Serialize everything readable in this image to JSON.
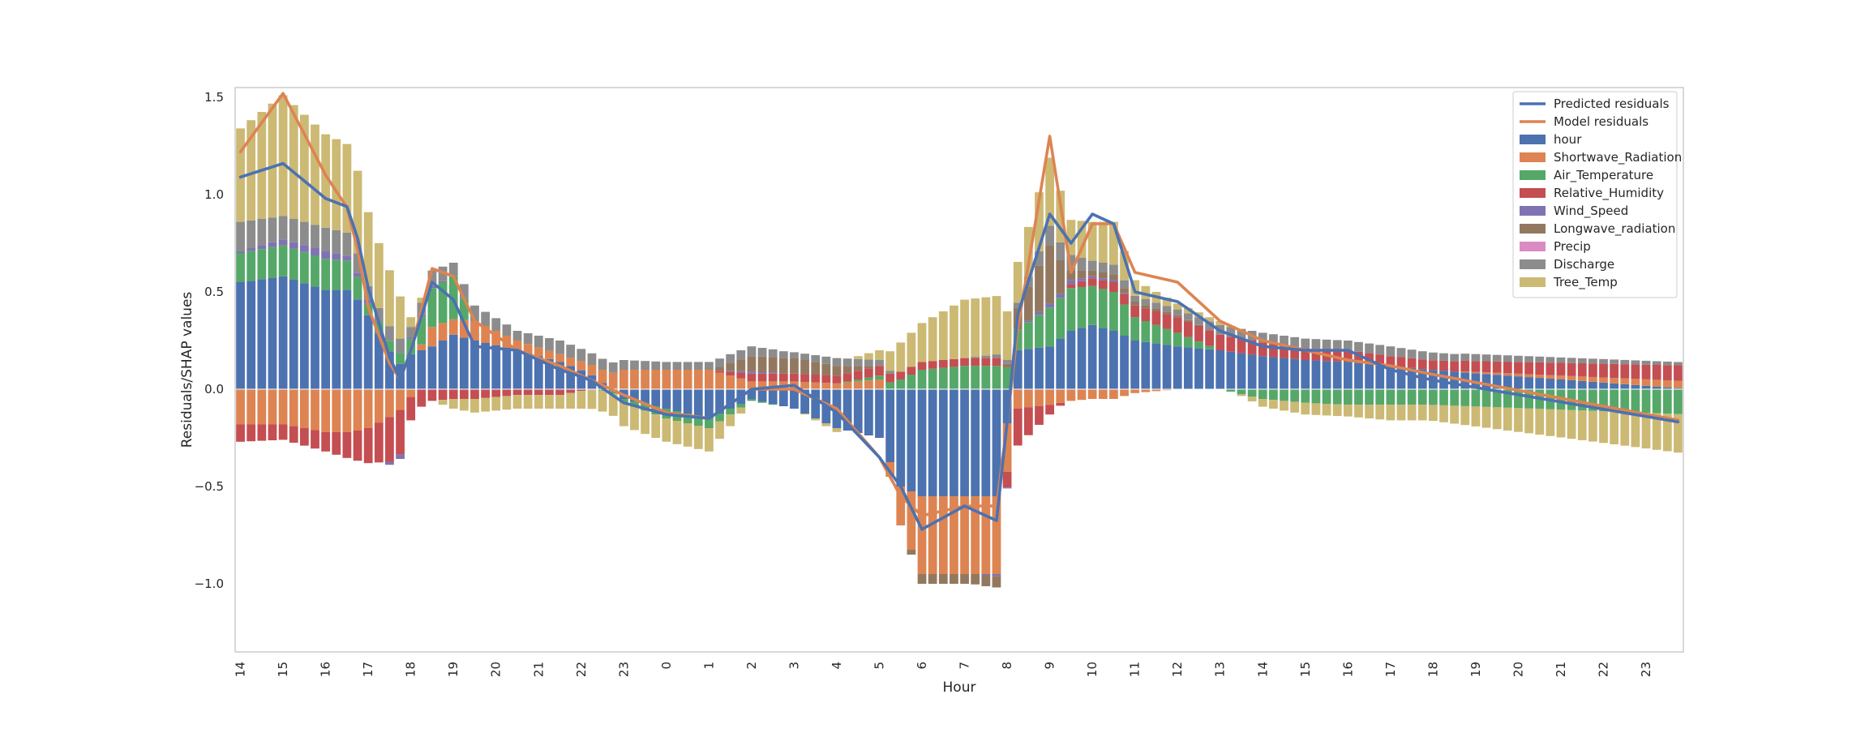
{
  "chart_data": {
    "type": "bar",
    "stacked": true,
    "title": "",
    "xlabel": "Hour",
    "ylabel": "Residuals/SHAP values",
    "ylim": [
      -1.35,
      1.55
    ],
    "yticks": [
      -1.0,
      -0.5,
      0.0,
      0.5,
      1.0,
      1.5
    ],
    "ytick_labels": [
      "−1.0",
      "−0.5",
      "0.0",
      "0.5",
      "1.0",
      "1.5"
    ],
    "x_tick_labels": [
      "14",
      "15",
      "16",
      "17",
      "18",
      "19",
      "20",
      "21",
      "22",
      "23",
      "0",
      "1",
      "2",
      "3",
      "4",
      "5",
      "6",
      "7",
      "8",
      "9",
      "10",
      "11",
      "12",
      "13",
      "14",
      "15",
      "16",
      "17",
      "18",
      "19",
      "20",
      "21",
      "22",
      "23"
    ],
    "points_per_hour": 4,
    "grid": false,
    "legend_position": "top-right",
    "legend": [
      {
        "label": "Predicted residuals",
        "kind": "line",
        "color": "#4c72b0"
      },
      {
        "label": "Model residuals",
        "kind": "line",
        "color": "#dd8452"
      },
      {
        "label": "hour",
        "kind": "bar",
        "color": "#4c72b0"
      },
      {
        "label": "Shortwave_Radiation",
        "kind": "bar",
        "color": "#dd8452"
      },
      {
        "label": "Air_Temperature",
        "kind": "bar",
        "color": "#55a868"
      },
      {
        "label": "Relative_Humidity",
        "kind": "bar",
        "color": "#c44e52"
      },
      {
        "label": "Wind_Speed",
        "kind": "bar",
        "color": "#8172b3"
      },
      {
        "label": "Longwave_radiation",
        "kind": "bar",
        "color": "#937860"
      },
      {
        "label": "Precip",
        "kind": "bar",
        "color": "#da8bc3"
      },
      {
        "label": "Discharge",
        "kind": "bar",
        "color": "#8c8c8c"
      },
      {
        "label": "Tree_Temp",
        "kind": "bar",
        "color": "#ccb974"
      }
    ],
    "features": [
      "hour",
      "Shortwave_Radiation",
      "Air_Temperature",
      "Relative_Humidity",
      "Wind_Speed",
      "Longwave_radiation",
      "Precip",
      "Discharge",
      "Tree_Temp"
    ],
    "keyframes": [
      {
        "t": 0,
        "f": [
          0.55,
          -0.18,
          0.15,
          -0.09,
          0.01,
          0.0,
          0.0,
          0.15,
          0.48
        ],
        "pred": 1.09,
        "model": 1.22
      },
      {
        "t": 1.0,
        "f": [
          0.58,
          -0.18,
          0.16,
          -0.08,
          0.03,
          0.0,
          0.0,
          0.12,
          0.62
        ],
        "pred": 1.16,
        "model": 1.52
      },
      {
        "t": 2.0,
        "f": [
          0.51,
          -0.22,
          0.16,
          -0.1,
          0.04,
          0.0,
          0.0,
          0.12,
          0.48
        ],
        "pred": 0.98,
        "model": 1.1
      },
      {
        "t": 2.6,
        "f": [
          0.51,
          -0.22,
          0.15,
          -0.14,
          0.02,
          0.0,
          0.0,
          0.12,
          0.45
        ],
        "pred": 0.93,
        "model": 0.9
      },
      {
        "t": 3.0,
        "f": [
          0.38,
          -0.2,
          0.06,
          -0.18,
          0.02,
          0.0,
          0.0,
          0.07,
          0.38
        ],
        "pred": 0.52,
        "model": 0.42
      },
      {
        "t": 3.7,
        "f": [
          0.12,
          -0.12,
          0.05,
          -0.25,
          -0.03,
          0.0,
          0.0,
          0.08,
          0.25
        ],
        "pred": 0.02,
        "model": 0.02
      },
      {
        "t": 4.0,
        "f": [
          0.18,
          -0.04,
          0.08,
          -0.12,
          0.01,
          0.0,
          0.0,
          0.05,
          0.05
        ],
        "pred": 0.2,
        "model": 0.2
      },
      {
        "t": 4.5,
        "f": [
          0.22,
          0.1,
          0.2,
          -0.06,
          0.01,
          0.0,
          0.0,
          0.08,
          0.0
        ],
        "pred": 0.55,
        "model": 0.62
      },
      {
        "t": 5.0,
        "f": [
          0.28,
          0.08,
          0.22,
          -0.05,
          0.0,
          0.0,
          0.0,
          0.07,
          -0.05
        ],
        "pred": 0.46,
        "model": 0.58
      },
      {
        "t": 5.5,
        "f": [
          0.25,
          0.1,
          0.0,
          -0.05,
          0.0,
          0.0,
          0.0,
          0.08,
          -0.07
        ],
        "pred": 0.22,
        "model": 0.35
      },
      {
        "t": 6.5,
        "f": [
          0.2,
          0.05,
          0.0,
          -0.03,
          0.0,
          0.0,
          0.0,
          0.05,
          -0.07
        ],
        "pred": 0.2,
        "model": 0.2
      },
      {
        "t": 7.5,
        "f": [
          0.14,
          0.04,
          0.0,
          -0.03,
          0.0,
          0.0,
          0.0,
          0.07,
          -0.07
        ],
        "pred": 0.1,
        "model": 0.12
      },
      {
        "t": 8.2,
        "f": [
          0.08,
          0.05,
          0.0,
          0.0,
          0.0,
          0.0,
          0.0,
          0.06,
          -0.1
        ],
        "pred": 0.05,
        "model": 0.05
      },
      {
        "t": 9.0,
        "f": [
          -0.05,
          0.1,
          -0.02,
          0.0,
          0.0,
          0.0,
          0.0,
          0.05,
          -0.12
        ],
        "pred": -0.07,
        "model": -0.03
      },
      {
        "t": 10.0,
        "f": [
          -0.1,
          0.1,
          -0.05,
          0.0,
          0.0,
          0.0,
          0.0,
          0.04,
          -0.12
        ],
        "pred": -0.13,
        "model": -0.12
      },
      {
        "t": 11.0,
        "f": [
          -0.15,
          0.1,
          -0.05,
          0.0,
          0.0,
          0.0,
          0.0,
          0.04,
          -0.12
        ],
        "pred": -0.15,
        "model": -0.15
      },
      {
        "t": 12.0,
        "f": [
          -0.05,
          0.04,
          -0.01,
          0.04,
          0.01,
          0.08,
          0.0,
          0.05,
          0.0
        ],
        "pred": 0.0,
        "model": 0.0
      },
      {
        "t": 13.0,
        "f": [
          -0.1,
          0.04,
          0.0,
          0.04,
          0.0,
          0.08,
          0.0,
          0.03,
          0.0
        ],
        "pred": 0.02,
        "model": 0.0
      },
      {
        "t": 14.0,
        "f": [
          -0.2,
          0.03,
          0.0,
          0.04,
          0.0,
          0.05,
          0.0,
          0.04,
          -0.02
        ],
        "pred": -0.12,
        "model": -0.1
      },
      {
        "t": 15.0,
        "f": [
          -0.25,
          0.05,
          0.02,
          0.05,
          0.0,
          0.0,
          0.0,
          0.03,
          0.05
        ],
        "pred": -0.35,
        "model": -0.35
      },
      {
        "t": 15.5,
        "f": [
          -0.5,
          -0.2,
          0.05,
          0.04,
          0.0,
          0.0,
          0.0,
          0.0,
          0.15
        ],
        "pred": -0.5,
        "model": -0.55
      },
      {
        "t": 16.0,
        "f": [
          -0.55,
          -0.4,
          0.1,
          0.04,
          0.0,
          -0.05,
          0.0,
          0.0,
          0.2
        ],
        "pred": -0.72,
        "model": -0.65
      },
      {
        "t": 17.0,
        "f": [
          -0.55,
          -0.4,
          0.12,
          0.04,
          0.0,
          -0.05,
          0.0,
          0.0,
          0.3
        ],
        "pred": -0.6,
        "model": -0.6
      },
      {
        "t": 17.8,
        "f": [
          -0.55,
          -0.4,
          0.12,
          0.04,
          -0.01,
          -0.06,
          0.0,
          0.02,
          0.3
        ],
        "pred": -0.68,
        "model": -0.6
      },
      {
        "t": 18.2,
        "f": [
          0.2,
          -0.1,
          0.1,
          -0.2,
          0.0,
          0.1,
          0.0,
          0.02,
          0.2
        ],
        "pred": 0.35,
        "model": 0.25
      },
      {
        "t": 19.0,
        "f": [
          0.22,
          -0.08,
          0.2,
          -0.05,
          0.02,
          0.3,
          0.0,
          0.1,
          0.35
        ],
        "pred": 0.9,
        "model": 1.3
      },
      {
        "t": 19.5,
        "f": [
          0.3,
          -0.06,
          0.22,
          0.02,
          0.02,
          0.05,
          0.0,
          0.08,
          0.18
        ],
        "pred": 0.75,
        "model": 0.6
      },
      {
        "t": 20.0,
        "f": [
          0.33,
          -0.05,
          0.2,
          0.04,
          0.01,
          0.03,
          0.0,
          0.05,
          0.2
        ],
        "pred": 0.9,
        "model": 0.85
      },
      {
        "t": 20.5,
        "f": [
          0.3,
          -0.05,
          0.2,
          0.05,
          0.01,
          0.03,
          0.0,
          0.05,
          0.22
        ],
        "pred": 0.85,
        "model": 0.85
      },
      {
        "t": 21.0,
        "f": [
          0.25,
          -0.02,
          0.12,
          0.06,
          0.0,
          0.02,
          0.0,
          0.03,
          0.08
        ],
        "pred": 0.5,
        "model": 0.6
      },
      {
        "t": 22.0,
        "f": [
          0.22,
          0.0,
          0.07,
          0.08,
          0.0,
          0.01,
          0.0,
          0.03,
          0.03
        ],
        "pred": 0.45,
        "model": 0.55
      },
      {
        "t": 23.0,
        "f": [
          0.2,
          0.0,
          0.0,
          0.08,
          0.0,
          0.0,
          0.0,
          0.05,
          0.02
        ],
        "pred": 0.3,
        "model": 0.35
      },
      {
        "t": 24.0,
        "f": [
          0.17,
          0.0,
          -0.05,
          0.07,
          0.0,
          0.0,
          0.0,
          0.05,
          -0.04
        ],
        "pred": 0.22,
        "model": 0.25
      },
      {
        "t": 25.0,
        "f": [
          0.15,
          0.0,
          -0.07,
          0.06,
          0.0,
          0.0,
          0.0,
          0.05,
          -0.06
        ],
        "pred": 0.2,
        "model": 0.2
      },
      {
        "t": 26.0,
        "f": [
          0.14,
          0.0,
          -0.08,
          0.06,
          0.0,
          0.0,
          0.0,
          0.05,
          -0.06
        ],
        "pred": 0.2,
        "model": 0.15
      },
      {
        "t": 27.0,
        "f": [
          0.12,
          0.0,
          -0.08,
          0.05,
          0.0,
          0.0,
          0.0,
          0.05,
          -0.08
        ],
        "pred": 0.1,
        "model": 0.12
      },
      {
        "t": 27.9,
        "f": [
          0.1,
          0.0,
          -0.08,
          0.05,
          0.0,
          0.0,
          0.0,
          0.04,
          -0.08
        ],
        "pred": 0.05,
        "model": 0.08
      }
    ],
    "n_points": 136
  }
}
